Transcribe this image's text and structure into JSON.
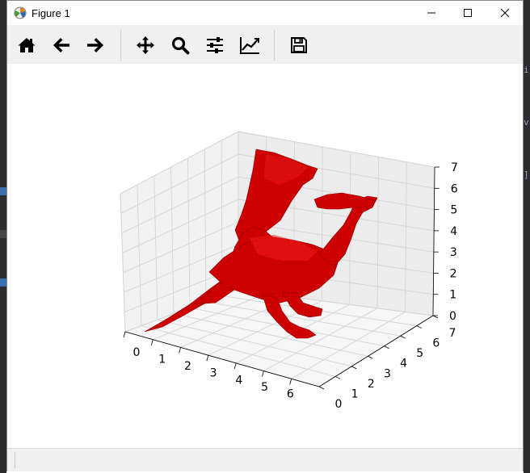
{
  "window": {
    "title": "Figure 1",
    "app_icon": "matplotlib-icon",
    "controls": [
      "minimize-icon",
      "maximize-icon",
      "close-icon"
    ]
  },
  "toolbar": {
    "buttons": [
      {
        "name": "home",
        "icon": "home-icon"
      },
      {
        "name": "back",
        "icon": "arrow-left-icon"
      },
      {
        "name": "forward",
        "icon": "arrow-right-icon"
      },
      {
        "name": "pan",
        "icon": "move-icon"
      },
      {
        "name": "zoom",
        "icon": "magnifier-icon"
      },
      {
        "name": "subplots",
        "icon": "sliders-icon"
      },
      {
        "name": "edit-axes",
        "icon": "line-chart-icon"
      },
      {
        "name": "save",
        "icon": "floppy-disk-icon"
      }
    ]
  },
  "chart_data": {
    "type": "voxels",
    "title": "",
    "xlabel": "",
    "ylabel": "",
    "zlabel": "",
    "x_ticks": [
      "0",
      "1",
      "2",
      "3",
      "4",
      "5",
      "6"
    ],
    "y_ticks": [
      "0",
      "1",
      "2",
      "3",
      "4",
      "5",
      "6",
      "7"
    ],
    "z_ticks": [
      "0",
      "1",
      "2",
      "3",
      "4",
      "5",
      "6",
      "7"
    ],
    "xlim": [
      0,
      7
    ],
    "ylim": [
      0,
      7
    ],
    "zlim": [
      0,
      7
    ],
    "grid": true,
    "voxel_color": "#d40000",
    "subject": "dragon"
  }
}
